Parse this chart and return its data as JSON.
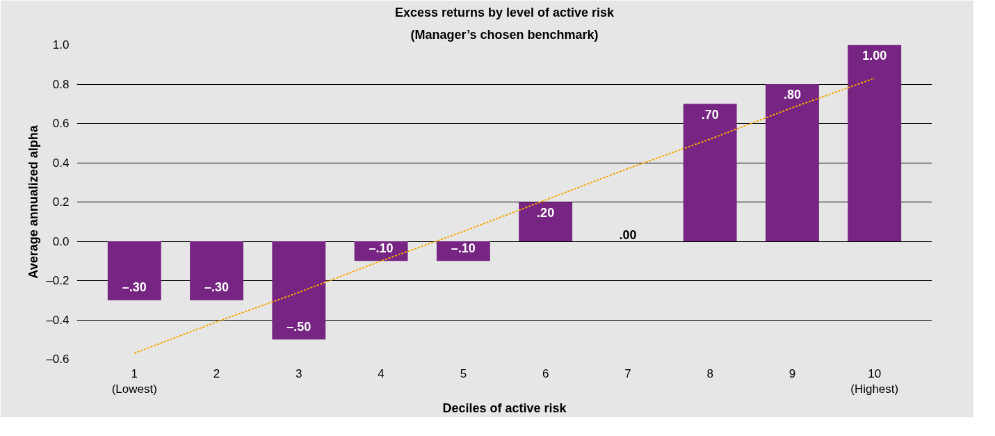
{
  "chart_data": {
    "type": "bar",
    "title": "Excess returns by level of active risk",
    "subtitle": "(Manager’s chosen benchmark)",
    "xlabel": "Deciles of active risk",
    "ylabel": "Average annualized alpha",
    "categories": [
      "1\n(Lowest)",
      "2",
      "3",
      "4",
      "5",
      "6",
      "7",
      "8",
      "9",
      "10\n(Highest)"
    ],
    "series": [
      {
        "color": "#772583",
        "values": [
          -0.3,
          -0.3,
          -0.5,
          -0.1,
          -0.1,
          0.2,
          0.0,
          0.7,
          0.8,
          1.0
        ],
        "value_labels": [
          "–.30",
          "–.30",
          "–.50",
          "–.10",
          "–.10",
          ".20",
          ".00",
          ".70",
          ".80",
          "1.00"
        ]
      },
      {
        "type": "line",
        "color": "#f5a800",
        "line_style": "dotted",
        "values": [
          -0.57,
          -0.41,
          -0.26,
          -0.1,
          0.05,
          0.21,
          0.37,
          0.52,
          0.68,
          0.83
        ]
      }
    ],
    "ylim": [
      -0.6,
      1.0
    ],
    "yticks": [
      {
        "value": -0.6,
        "label": "–0.6"
      },
      {
        "value": -0.4,
        "label": "–0.4"
      },
      {
        "value": -0.2,
        "label": "–0.2"
      },
      {
        "value": 0,
        "label": "0.0"
      },
      {
        "value": 0.2,
        "label": "0.2"
      },
      {
        "value": 0.4,
        "label": "0.4"
      },
      {
        "value": 0.6,
        "label": "0.6"
      },
      {
        "value": 0.8,
        "label": "0.8"
      },
      {
        "value": 1.0,
        "label": "1.0"
      }
    ],
    "grid": "y"
  }
}
